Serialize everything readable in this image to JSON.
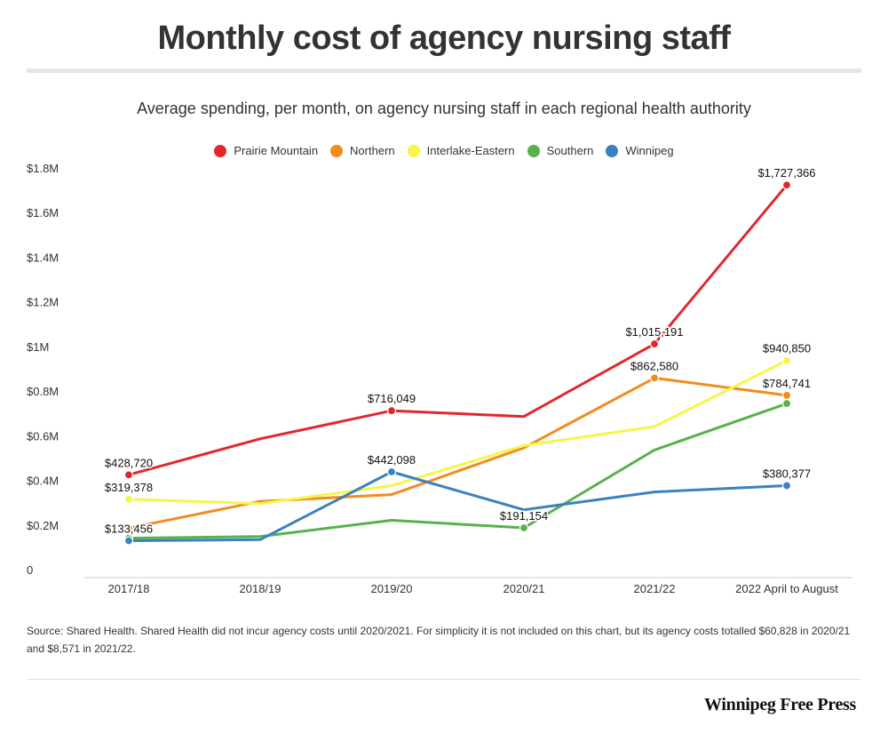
{
  "header": {
    "title": "Monthly cost of agency nursing staff",
    "subtitle": "Average spending, per month, on agency nursing staff in each regional health authority"
  },
  "legend": [
    {
      "label": "Prairie Mountain",
      "color": "#e3262d"
    },
    {
      "label": "Northern",
      "color": "#f38b1e"
    },
    {
      "label": "Interlake-Eastern",
      "color": "#f7f54a"
    },
    {
      "label": "Southern",
      "color": "#58b14d"
    },
    {
      "label": "Winnipeg",
      "color": "#3a82bf"
    }
  ],
  "chart_data": {
    "type": "line",
    "title": "Monthly cost of agency nursing staff",
    "subtitle": "Average spending, per month, on agency nursing staff in each regional health authority",
    "xlabel": "",
    "ylabel": "",
    "categories": [
      "2017/18",
      "2018/19",
      "2019/20",
      "2020/21",
      "2021/22",
      "2022 April to August"
    ],
    "ylim": [
      0,
      1800000
    ],
    "y_ticks": [
      0,
      200000,
      400000,
      600000,
      800000,
      1000000,
      1200000,
      1400000,
      1600000,
      1800000
    ],
    "y_tick_labels": [
      "0",
      "$0.2M",
      "$0.4M",
      "$0.6M",
      "$0.8M",
      "$1M",
      "$1.2M",
      "$1.4M",
      "$1.6M",
      "$1.8M"
    ],
    "grid": false,
    "legend_position": "top-center",
    "series": [
      {
        "name": "Prairie Mountain",
        "color": "#e3262d",
        "values": [
          428720,
          590000,
          716049,
          690000,
          1015191,
          1727366
        ],
        "labels": [
          "$428,720",
          "",
          "$716,049",
          "",
          "$1,015,191",
          "$1,727,366"
        ]
      },
      {
        "name": "Northern",
        "color": "#f38b1e",
        "values": [
          190000,
          310000,
          340000,
          550000,
          862580,
          784741
        ],
        "labels": [
          "",
          "",
          "",
          "",
          "$862,580",
          "$784,741"
        ]
      },
      {
        "name": "Interlake-Eastern",
        "color": "#f7f54a",
        "values": [
          319378,
          300000,
          380000,
          560000,
          645000,
          940850
        ],
        "labels": [
          "$319,378",
          "",
          "",
          "",
          "",
          "$940,850"
        ]
      },
      {
        "name": "Southern",
        "color": "#58b14d",
        "values": [
          145000,
          152000,
          225000,
          191154,
          540000,
          748000
        ],
        "labels": [
          "",
          "",
          "",
          "$191,154",
          "",
          ""
        ]
      },
      {
        "name": "Winnipeg",
        "color": "#3a82bf",
        "values": [
          133456,
          138000,
          442098,
          272000,
          352000,
          380377
        ],
        "labels": [
          "$133,456",
          "",
          "$442,098",
          "",
          "",
          "$380,377"
        ]
      }
    ]
  },
  "footer": {
    "source": "Source: Shared Health.  Shared Health did not incur agency costs until 2020/2021. For simplicity it is not included on this chart, but its agency costs totalled $60,828 in 2020/21 and $8,571 in 2021/22.",
    "brand": "Winnipeg Free Press"
  }
}
